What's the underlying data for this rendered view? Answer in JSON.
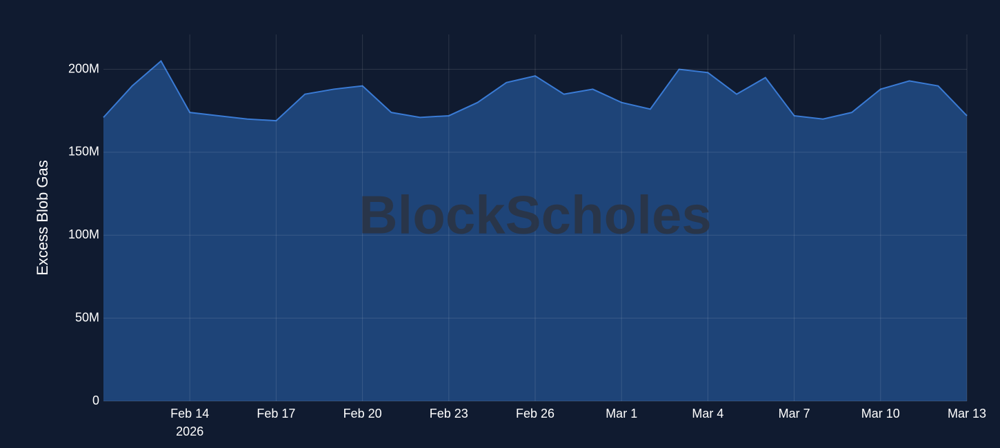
{
  "chart_data": {
    "type": "area",
    "y_label": "Excess Blob Gas",
    "watermark": "BlockScholes",
    "x": [
      "2026-02-11",
      "2026-02-12",
      "2026-02-13",
      "2026-02-14",
      "2026-02-15",
      "2026-02-16",
      "2026-02-17",
      "2026-02-18",
      "2026-02-19",
      "2026-02-20",
      "2026-02-21",
      "2026-02-22",
      "2026-02-23",
      "2026-02-24",
      "2026-02-25",
      "2026-02-26",
      "2026-02-27",
      "2026-02-28",
      "2026-03-01",
      "2026-03-02",
      "2026-03-03",
      "2026-03-04",
      "2026-03-05",
      "2026-03-06",
      "2026-03-07",
      "2026-03-08",
      "2026-03-09",
      "2026-03-10",
      "2026-03-11",
      "2026-03-12",
      "2026-03-13"
    ],
    "series": [
      {
        "name": "Excess Blob Gas",
        "color": "#3a7bd5",
        "fill": "#1e4478",
        "values": [
          171000000,
          190000000,
          205000000,
          174000000,
          172000000,
          170000000,
          169000000,
          185000000,
          188000000,
          190000000,
          174000000,
          171000000,
          172000000,
          180000000,
          192000000,
          196000000,
          185000000,
          188000000,
          180000000,
          176000000,
          200000000,
          198000000,
          185000000,
          195000000,
          172000000,
          170000000,
          174000000,
          188000000,
          193000000,
          190000000,
          172000000
        ]
      }
    ],
    "xlim": [
      "2026-02-11",
      "2026-03-13"
    ],
    "xticks": [
      {
        "value": "2026-02-14",
        "label": "Feb 14",
        "sublabel": "2026"
      },
      {
        "value": "2026-02-17",
        "label": "Feb 17"
      },
      {
        "value": "2026-02-20",
        "label": "Feb 20"
      },
      {
        "value": "2026-02-23",
        "label": "Feb 23"
      },
      {
        "value": "2026-02-26",
        "label": "Feb 26"
      },
      {
        "value": "2026-03-01",
        "label": "Mar 1"
      },
      {
        "value": "2026-03-04",
        "label": "Mar 4"
      },
      {
        "value": "2026-03-07",
        "label": "Mar 7"
      },
      {
        "value": "2026-03-10",
        "label": "Mar 10"
      },
      {
        "value": "2026-03-13",
        "label": "Mar 13"
      }
    ],
    "ylim": [
      0,
      221000000
    ],
    "yticks": [
      0,
      {
        "value": 50000000,
        "label": "50M"
      },
      {
        "value": 100000000,
        "label": "100M"
      },
      {
        "value": 150000000,
        "label": "150M"
      },
      {
        "value": 200000000,
        "label": "200M"
      }
    ],
    "grid": true
  }
}
